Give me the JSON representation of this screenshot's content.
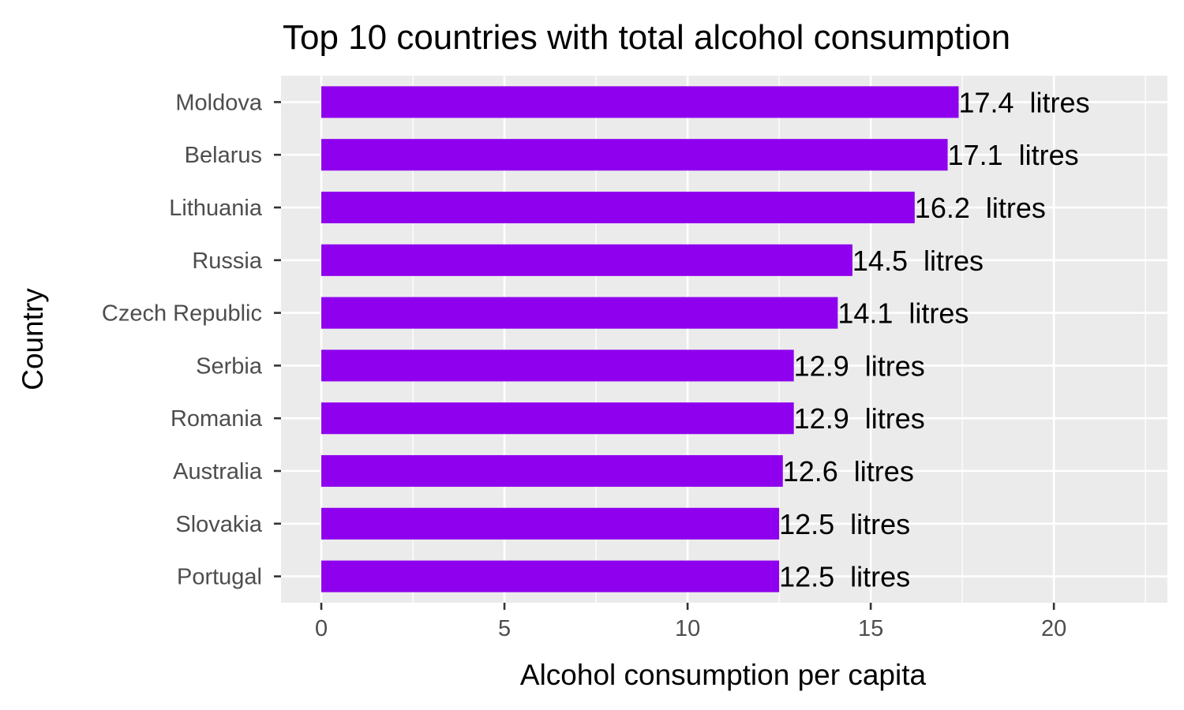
{
  "chart_data": {
    "type": "bar",
    "orientation": "horizontal",
    "title": "Top 10 countries with total alcohol consumption",
    "xlabel": "Alcohol consumption per capita",
    "ylabel": "Country",
    "categories": [
      "Moldova",
      "Belarus",
      "Lithuania",
      "Russia",
      "Czech Republic",
      "Serbia",
      "Romania",
      "Australia",
      "Slovakia",
      "Portugal"
    ],
    "values": [
      17.4,
      17.1,
      16.2,
      14.5,
      14.1,
      12.9,
      12.9,
      12.6,
      12.5,
      12.5
    ],
    "value_labels": [
      "17.4  litres",
      "17.1  litres",
      "16.2  litres",
      "14.5  litres",
      "14.1  litres",
      "12.9  litres",
      "12.9  litres",
      "12.6  litres",
      "12.5  litres",
      "12.5  litres"
    ],
    "xticks": [
      "0",
      "5",
      "10",
      "15",
      "20"
    ],
    "xlim": [
      -1.1,
      23.1
    ],
    "grid": true,
    "legend": "none",
    "colors": {
      "bar": "#8E00EE",
      "panel": "#EBEBEB",
      "grid": "#FFFFFF"
    }
  }
}
